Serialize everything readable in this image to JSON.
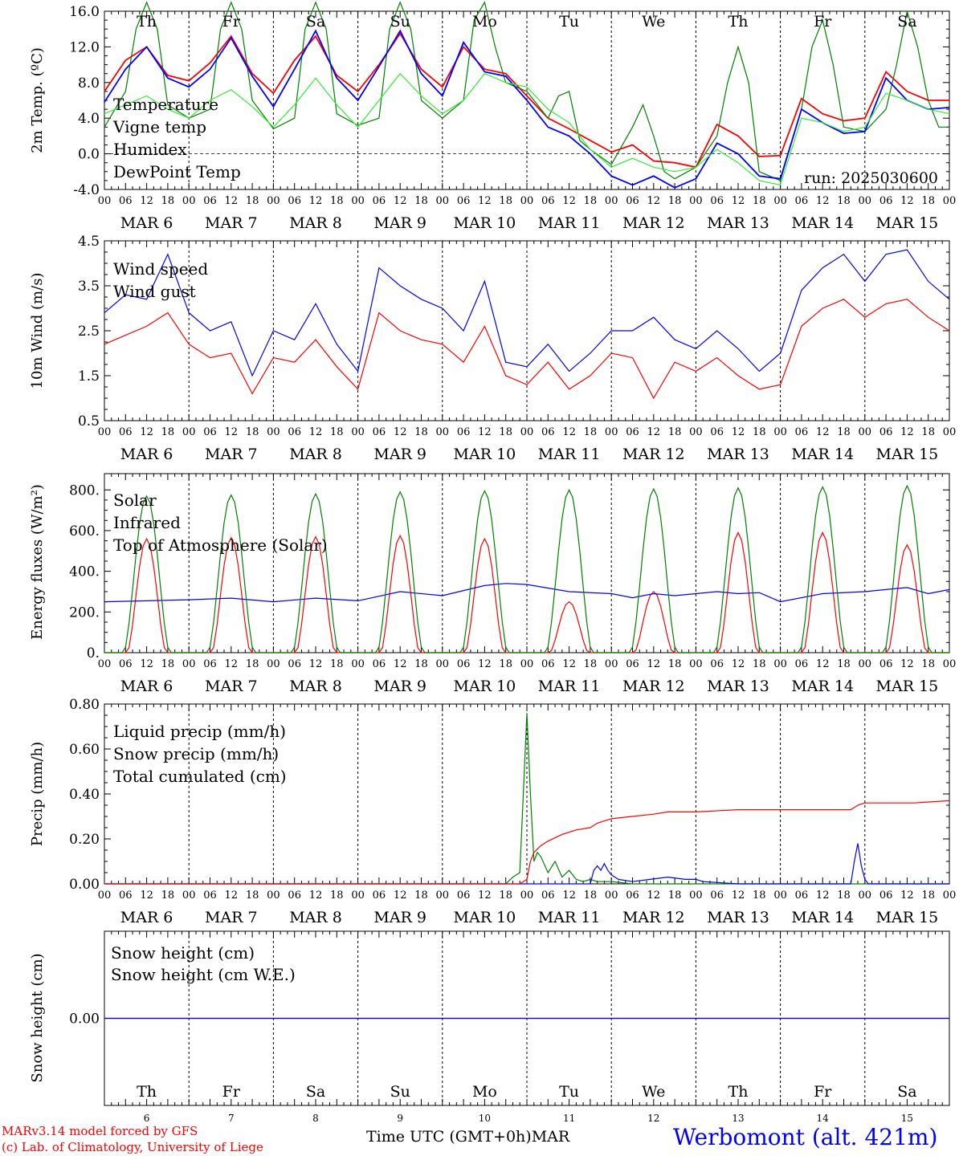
{
  "chart_data": [
    {
      "type": "line",
      "ylabel": "2m Temp. (ºC)",
      "ylim": [
        -4.0,
        16.0
      ],
      "yticks": [
        "-4.0",
        "0.0",
        "4.0",
        "8.0",
        "12.0",
        "16.0"
      ],
      "run_label": "run: 2025030600",
      "zero_line": true,
      "series": [
        {
          "name": "Temperature",
          "color": "#ff0000",
          "x": [
            0,
            6,
            12,
            18,
            24,
            30,
            36,
            42,
            48,
            54,
            60,
            66,
            72,
            78,
            84,
            90,
            96,
            102,
            108,
            114,
            120,
            126,
            132,
            138,
            144,
            150,
            156,
            162,
            168,
            174,
            180,
            186,
            192,
            198,
            204,
            210,
            216,
            222,
            228,
            234,
            240
          ],
          "y": [
            7.0,
            10.5,
            12.0,
            8.8,
            8.2,
            10.2,
            13.2,
            9.0,
            6.8,
            10.5,
            13.2,
            8.8,
            7.0,
            10.0,
            13.5,
            9.5,
            7.5,
            12.0,
            9.5,
            9.0,
            6.5,
            4.0,
            2.8,
            1.5,
            0.2,
            1.0,
            -0.8,
            -1.0,
            -1.5,
            3.3,
            2.0,
            -0.3,
            -0.2,
            6.2,
            4.5,
            3.7,
            4.0,
            9.2,
            7.0,
            6.0,
            6.0
          ]
        },
        {
          "name": "Vigne temp",
          "color": "#008000",
          "x": [
            0,
            6,
            9,
            12,
            15,
            18,
            24,
            30,
            33,
            36,
            39,
            42,
            48,
            54,
            57,
            60,
            63,
            66,
            72,
            78,
            81,
            84,
            87,
            90,
            96,
            102,
            105,
            108,
            111,
            114,
            120,
            126,
            129,
            132,
            135,
            138,
            144,
            150,
            153,
            156,
            159,
            162,
            168,
            174,
            177,
            180,
            183,
            186,
            192,
            198,
            201,
            204,
            207,
            210,
            216,
            222,
            225,
            228,
            231,
            234,
            237,
            240
          ],
          "y": [
            3.0,
            7.0,
            14.0,
            17.0,
            14.0,
            5.5,
            4.0,
            5.0,
            14.0,
            17.0,
            14.0,
            6.0,
            2.8,
            4.0,
            14.0,
            17.0,
            14.0,
            4.5,
            3.2,
            4.0,
            14.0,
            17.0,
            14.0,
            6.0,
            4.0,
            6.0,
            15.0,
            17.0,
            12.0,
            8.0,
            7.0,
            4.0,
            6.5,
            7.0,
            1.5,
            0.5,
            -1.2,
            3.0,
            5.5,
            2.0,
            -2.0,
            -2.8,
            -1.5,
            2.0,
            8.0,
            12.0,
            8.0,
            -2.0,
            -3.0,
            5.0,
            12.0,
            15.0,
            10.0,
            3.0,
            2.5,
            5.0,
            10.0,
            16.0,
            12.0,
            6.0,
            3.0,
            3.0
          ]
        },
        {
          "name": "Humidex",
          "color": "#0000ff",
          "x": [
            0,
            6,
            12,
            18,
            24,
            30,
            36,
            42,
            48,
            54,
            60,
            66,
            72,
            78,
            84,
            90,
            96,
            102,
            108,
            114,
            120,
            126,
            132,
            138,
            144,
            150,
            156,
            162,
            168,
            174,
            180,
            186,
            192,
            198,
            204,
            210,
            216,
            222,
            228,
            234,
            240
          ],
          "y": [
            5.8,
            9.5,
            12.0,
            8.5,
            7.5,
            9.5,
            13.0,
            8.7,
            5.3,
            9.5,
            13.8,
            8.5,
            6.0,
            9.8,
            13.8,
            9.0,
            6.5,
            12.5,
            9.2,
            8.7,
            6.0,
            3.0,
            2.0,
            0.0,
            -2.5,
            -3.5,
            -2.5,
            -3.8,
            -2.8,
            1.2,
            0.0,
            -2.5,
            -2.8,
            5.0,
            3.5,
            2.3,
            2.5,
            8.5,
            6.0,
            5.0,
            5.2
          ]
        },
        {
          "name": "DewPoint Temp",
          "color": "#33ee33",
          "x": [
            0,
            6,
            12,
            18,
            24,
            30,
            36,
            42,
            48,
            54,
            60,
            66,
            72,
            78,
            84,
            90,
            96,
            102,
            108,
            114,
            120,
            126,
            132,
            138,
            144,
            150,
            156,
            162,
            168,
            174,
            180,
            186,
            192,
            198,
            204,
            210,
            216,
            222,
            228,
            234,
            240
          ],
          "y": [
            4.5,
            5.5,
            6.5,
            5.0,
            4.0,
            6.0,
            7.2,
            5.3,
            3.0,
            5.5,
            8.5,
            5.5,
            3.0,
            6.0,
            9.0,
            6.5,
            4.5,
            6.0,
            9.0,
            8.0,
            7.5,
            5.0,
            3.5,
            0.5,
            -1.5,
            -0.5,
            -1.5,
            -2.0,
            -1.5,
            0.5,
            -1.0,
            -3.0,
            -3.5,
            4.0,
            3.5,
            2.5,
            3.0,
            6.8,
            6.0,
            5.0,
            4.5
          ]
        }
      ]
    },
    {
      "type": "line",
      "ylabel": "10m Wind (m/s)",
      "ylim": [
        0.5,
        4.5
      ],
      "yticks": [
        "0.5",
        "1.5",
        "2.5",
        "3.5",
        "4.5"
      ],
      "series": [
        {
          "name": "Wind speed",
          "color": "#ff0000",
          "x": [
            0,
            6,
            12,
            18,
            24,
            30,
            36,
            42,
            48,
            54,
            60,
            66,
            72,
            78,
            84,
            90,
            96,
            102,
            108,
            114,
            120,
            126,
            132,
            138,
            144,
            150,
            156,
            162,
            168,
            174,
            180,
            186,
            192,
            198,
            204,
            210,
            216,
            222,
            228,
            234,
            240
          ],
          "y": [
            2.2,
            2.4,
            2.6,
            2.9,
            2.2,
            1.9,
            2.0,
            1.1,
            1.9,
            1.8,
            2.3,
            1.7,
            1.2,
            2.9,
            2.5,
            2.3,
            2.2,
            1.8,
            2.6,
            1.5,
            1.3,
            1.8,
            1.2,
            1.5,
            2.0,
            1.9,
            1.0,
            1.8,
            1.6,
            1.9,
            1.5,
            1.2,
            1.3,
            2.6,
            3.0,
            3.2,
            2.8,
            3.1,
            3.2,
            2.8,
            2.5
          ]
        },
        {
          "name": "Wind gust",
          "color": "#0000ff",
          "x": [
            0,
            6,
            12,
            18,
            24,
            30,
            36,
            42,
            48,
            54,
            60,
            66,
            72,
            78,
            84,
            90,
            96,
            102,
            108,
            114,
            120,
            126,
            132,
            138,
            144,
            150,
            156,
            162,
            168,
            174,
            180,
            186,
            192,
            198,
            204,
            210,
            216,
            222,
            228,
            234,
            240
          ],
          "y": [
            2.9,
            3.3,
            3.2,
            4.2,
            2.9,
            2.5,
            2.7,
            1.5,
            2.5,
            2.3,
            3.1,
            2.2,
            1.6,
            3.9,
            3.5,
            3.2,
            3.0,
            2.5,
            3.6,
            1.8,
            1.7,
            2.2,
            1.6,
            2.0,
            2.5,
            2.5,
            2.8,
            2.3,
            2.1,
            2.5,
            2.1,
            1.6,
            2.0,
            3.4,
            3.9,
            4.2,
            3.6,
            4.2,
            4.3,
            3.6,
            3.2
          ]
        }
      ]
    },
    {
      "type": "line",
      "ylabel": "Energy fluxes (W/m²)",
      "ylim": [
        0,
        880
      ],
      "yticks": [
        "0.",
        "200.",
        "400.",
        "600.",
        "800."
      ],
      "series": [
        {
          "name": "Solar",
          "color": "#ff0000",
          "peaks": [
            560,
            565,
            570,
            575,
            560,
            250,
            300,
            590,
            590,
            530
          ]
        },
        {
          "name": "Infrared",
          "color": "#0000ff",
          "x": [
            0,
            12,
            24,
            36,
            48,
            60,
            72,
            84,
            96,
            108,
            114,
            120,
            132,
            144,
            150,
            156,
            162,
            168,
            174,
            180,
            186,
            192,
            204,
            216,
            222,
            228,
            234,
            240
          ],
          "y": [
            250,
            255,
            260,
            268,
            250,
            268,
            255,
            300,
            280,
            330,
            340,
            335,
            300,
            290,
            270,
            290,
            280,
            290,
            300,
            290,
            295,
            250,
            290,
            300,
            310,
            320,
            290,
            310
          ]
        },
        {
          "name": "Top of Atmosphere (Solar)",
          "color": "#008000",
          "peaks": [
            770,
            775,
            780,
            790,
            795,
            800,
            805,
            810,
            815,
            820
          ]
        }
      ]
    },
    {
      "type": "line",
      "ylabel": "Precip (mm/h)",
      "ylim": [
        0.0,
        0.8
      ],
      "yticks": [
        "0.00",
        "0.20",
        "0.40",
        "0.60",
        "0.80"
      ],
      "series": [
        {
          "name": "Liquid precip (mm/h)",
          "color": "#008000",
          "x": [
            0,
            114,
            116,
            118,
            120,
            121,
            122,
            123,
            124,
            126,
            128,
            130,
            132,
            134,
            136,
            138,
            140,
            144,
            150,
            160,
            170,
            180,
            190,
            200,
            210,
            216,
            220,
            240
          ],
          "y": [
            0,
            0,
            0.03,
            0.05,
            0.76,
            0.4,
            0.1,
            0.14,
            0.12,
            0.05,
            0.1,
            0.03,
            0.06,
            0.02,
            0.01,
            0.02,
            0.01,
            0.01,
            0.0,
            0.0,
            0.0,
            0.0,
            0.0,
            0.0,
            0.0,
            0.0,
            0.0,
            0.0
          ]
        },
        {
          "name": "Snow precip (mm/h)",
          "color": "#0000ff",
          "x": [
            0,
            138,
            139,
            140,
            141,
            142,
            143,
            144,
            146,
            150,
            155,
            160,
            165,
            168,
            170,
            180,
            212,
            213,
            214,
            215,
            216,
            217,
            218,
            240
          ],
          "y": [
            0,
            0,
            0.06,
            0.08,
            0.06,
            0.09,
            0.06,
            0.04,
            0.02,
            0.01,
            0.02,
            0.03,
            0.02,
            0.02,
            0.01,
            0.0,
            0.0,
            0.1,
            0.18,
            0.08,
            0.02,
            0.0,
            0.0,
            0.0
          ]
        },
        {
          "name": "Total cumulated (cm)",
          "color": "#ff0000",
          "x": [
            0,
            118,
            120,
            121,
            122,
            124,
            126,
            130,
            134,
            138,
            140,
            144,
            150,
            156,
            160,
            168,
            180,
            192,
            204,
            212,
            214,
            216,
            230,
            240
          ],
          "y": [
            0,
            0,
            0.02,
            0.1,
            0.14,
            0.17,
            0.19,
            0.22,
            0.24,
            0.25,
            0.27,
            0.29,
            0.3,
            0.31,
            0.32,
            0.32,
            0.33,
            0.33,
            0.33,
            0.33,
            0.35,
            0.36,
            0.36,
            0.37
          ]
        }
      ]
    },
    {
      "type": "line",
      "ylabel": "Snow height (cm)",
      "ylim": [
        -1,
        1
      ],
      "yticks": [
        "0.00"
      ],
      "series": [
        {
          "name": "Snow height (cm)",
          "color": "#ff0000",
          "x": [
            0,
            240
          ],
          "y": [
            0,
            0
          ]
        },
        {
          "name": "Snow height (cm W.E.)",
          "color": "#0000ff",
          "x": [
            0,
            240
          ],
          "y": [
            0,
            0
          ]
        }
      ]
    }
  ],
  "axis": {
    "hour_ticks": [
      "00",
      "06",
      "12",
      "18"
    ],
    "final_hour": "00",
    "date_labels": [
      "MAR  6",
      "MAR  7",
      "MAR  8",
      "MAR  9",
      "MAR 10",
      "MAR 11",
      "MAR 12",
      "MAR 13",
      "MAR 14",
      "MAR 15"
    ],
    "weekdays": [
      "Th",
      "Fr",
      "Sa",
      "Su",
      "Mo",
      "Tu",
      "We",
      "Th",
      "Fr",
      "Sa"
    ],
    "weekend_flags": [
      false,
      false,
      true,
      true,
      false,
      false,
      false,
      false,
      false,
      true
    ],
    "weekday_color": "#000000",
    "weekend_color": "#ff0000",
    "day_numbers": [
      "6",
      "7",
      "8",
      "9",
      "10",
      "11",
      "12",
      "13",
      "14",
      "15"
    ]
  },
  "footer": {
    "model_line1": "MARv3.14 model forced by GFS",
    "model_line2": "(c) Lab. of Climatology, University of Liege",
    "time_label": "Time UTC (GMT+0h)",
    "month_label": "MAR",
    "station": "Werbomont (alt. 421m)"
  },
  "colors": {
    "red": "#ff0000",
    "green": "#008000",
    "blue": "#0000ff",
    "lightgreen": "#33ee33"
  }
}
